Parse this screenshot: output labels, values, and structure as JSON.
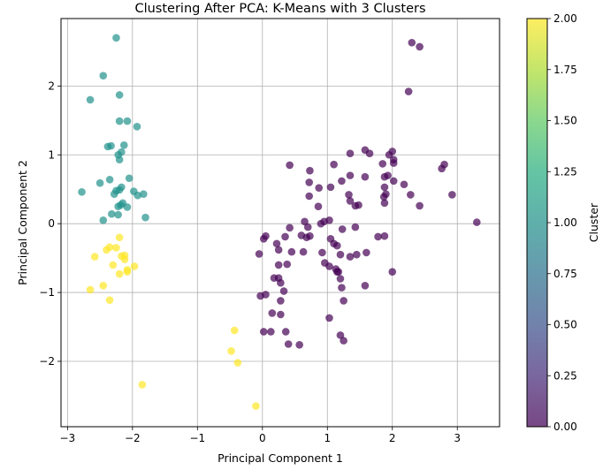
{
  "chart_data": {
    "type": "scatter",
    "title": "Clustering After PCA: K-Means with 3 Clusters",
    "xlabel": "Principal Component 1",
    "ylabel": "Principal Component 2",
    "xlim": [
      -3.1,
      3.65
    ],
    "ylim": [
      -2.95,
      2.98
    ],
    "xticks": [
      -3,
      -2,
      -1,
      0,
      1,
      2,
      3
    ],
    "yticks": [
      -2,
      -1,
      0,
      1,
      2
    ],
    "grid": true,
    "colorbar": {
      "label": "Cluster",
      "range": [
        0,
        2
      ],
      "ticks": [
        "0.00",
        "0.25",
        "0.50",
        "0.75",
        "1.00",
        "1.25",
        "1.50",
        "1.75",
        "2.00"
      ],
      "colormap": "viridis"
    },
    "series": [
      {
        "cluster": 0,
        "color": "#440154",
        "points": [
          [
            2.3,
            2.63
          ],
          [
            2.42,
            2.57
          ],
          [
            2.25,
            1.92
          ],
          [
            1.58,
            1.07
          ],
          [
            1.65,
            1.02
          ],
          [
            1.35,
            1.02
          ],
          [
            2.0,
            1.05
          ],
          [
            1.95,
            1.0
          ],
          [
            2.02,
            0.93
          ],
          [
            2.02,
            0.88
          ],
          [
            1.85,
            0.87
          ],
          [
            1.1,
            0.86
          ],
          [
            0.42,
            0.85
          ],
          [
            2.8,
            0.86
          ],
          [
            2.76,
            0.8
          ],
          [
            0.73,
            0.77
          ],
          [
            1.93,
            0.7
          ],
          [
            1.35,
            0.7
          ],
          [
            1.58,
            0.68
          ],
          [
            1.88,
            0.68
          ],
          [
            2.02,
            0.62
          ],
          [
            0.72,
            0.6
          ],
          [
            1.22,
            0.62
          ],
          [
            2.18,
            0.57
          ],
          [
            1.88,
            0.53
          ],
          [
            0.87,
            0.52
          ],
          [
            1.05,
            0.53
          ],
          [
            1.9,
            0.43
          ],
          [
            2.28,
            0.42
          ],
          [
            1.87,
            0.39
          ],
          [
            2.92,
            0.42
          ],
          [
            0.72,
            0.4
          ],
          [
            1.33,
            0.42
          ],
          [
            1.35,
            0.33
          ],
          [
            1.88,
            0.3
          ],
          [
            1.48,
            0.27
          ],
          [
            1.43,
            0.26
          ],
          [
            2.42,
            0.26
          ],
          [
            0.86,
            0.25
          ],
          [
            3.3,
            0.02
          ],
          [
            0.95,
            0.03
          ],
          [
            1.03,
            0.05
          ],
          [
            0.65,
            0.03
          ],
          [
            0.7,
            -0.05
          ],
          [
            0.9,
            0.0
          ],
          [
            0.42,
            -0.06
          ],
          [
            1.23,
            -0.08
          ],
          [
            1.43,
            -0.05
          ],
          [
            0.05,
            -0.18
          ],
          [
            0.02,
            -0.22
          ],
          [
            0.35,
            -0.19
          ],
          [
            0.6,
            -0.17
          ],
          [
            0.68,
            -0.2
          ],
          [
            0.73,
            -0.18
          ],
          [
            0.22,
            -0.29
          ],
          [
            1.05,
            -0.22
          ],
          [
            1.1,
            -0.29
          ],
          [
            1.15,
            -0.32
          ],
          [
            1.88,
            -0.18
          ],
          [
            1.78,
            -0.19
          ],
          [
            0.25,
            -0.38
          ],
          [
            0.45,
            -0.41
          ],
          [
            0.63,
            -0.41
          ],
          [
            0.92,
            -0.42
          ],
          [
            1.2,
            -0.45
          ],
          [
            1.35,
            -0.48
          ],
          [
            1.45,
            -0.45
          ],
          [
            1.6,
            -0.42
          ],
          [
            -0.05,
            -0.44
          ],
          [
            0.25,
            -0.6
          ],
          [
            0.38,
            -0.59
          ],
          [
            0.96,
            -0.57
          ],
          [
            1.03,
            -0.62
          ],
          [
            1.13,
            -0.66
          ],
          [
            1.15,
            -0.7
          ],
          [
            1.17,
            -0.7
          ],
          [
            1.2,
            -0.8
          ],
          [
            1.58,
            -0.9
          ],
          [
            1.22,
            -0.93
          ],
          [
            2.0,
            -0.7
          ],
          [
            0.18,
            -0.79
          ],
          [
            0.25,
            -0.79
          ],
          [
            0.28,
            -0.86
          ],
          [
            0.33,
            -0.98
          ],
          [
            0.05,
            -1.03
          ],
          [
            -0.03,
            -1.05
          ],
          [
            0.28,
            -1.12
          ],
          [
            1.25,
            -1.12
          ],
          [
            0.15,
            -1.3
          ],
          [
            0.28,
            -1.32
          ],
          [
            1.03,
            -1.37
          ],
          [
            0.02,
            -1.57
          ],
          [
            0.13,
            -1.57
          ],
          [
            0.36,
            -1.57
          ],
          [
            1.2,
            -1.62
          ],
          [
            1.25,
            -1.7
          ],
          [
            0.4,
            -1.75
          ],
          [
            0.57,
            -1.76
          ]
        ]
      },
      {
        "cluster": 1,
        "color": "#21918c",
        "points": [
          [
            -2.25,
            2.7
          ],
          [
            -2.45,
            2.15
          ],
          [
            -2.2,
            1.87
          ],
          [
            -2.65,
            1.8
          ],
          [
            -2.2,
            1.49
          ],
          [
            -2.08,
            1.49
          ],
          [
            -1.93,
            1.41
          ],
          [
            -2.38,
            1.12
          ],
          [
            -2.33,
            1.13
          ],
          [
            -2.13,
            1.14
          ],
          [
            -2.17,
            1.04
          ],
          [
            -2.22,
            1.0
          ],
          [
            -2.2,
            0.93
          ],
          [
            -2.05,
            0.66
          ],
          [
            -2.35,
            0.64
          ],
          [
            -2.5,
            0.59
          ],
          [
            -2.17,
            0.53
          ],
          [
            -2.2,
            0.49
          ],
          [
            -2.25,
            0.48
          ],
          [
            -1.98,
            0.47
          ],
          [
            -2.28,
            0.43
          ],
          [
            -2.78,
            0.46
          ],
          [
            -1.83,
            0.43
          ],
          [
            -1.92,
            0.41
          ],
          [
            -2.15,
            0.3
          ],
          [
            -2.18,
            0.27
          ],
          [
            -2.22,
            0.25
          ],
          [
            -2.08,
            0.24
          ],
          [
            -2.32,
            0.14
          ],
          [
            -2.22,
            0.13
          ],
          [
            -2.45,
            0.05
          ],
          [
            -1.8,
            0.09
          ]
        ]
      },
      {
        "cluster": 2,
        "color": "#fde725",
        "points": [
          [
            -2.2,
            -0.2
          ],
          [
            -2.25,
            -0.35
          ],
          [
            -2.35,
            -0.34
          ],
          [
            -2.4,
            -0.38
          ],
          [
            -2.58,
            -0.48
          ],
          [
            -2.17,
            -0.47
          ],
          [
            -2.12,
            -0.46
          ],
          [
            -2.12,
            -0.52
          ],
          [
            -2.3,
            -0.6
          ],
          [
            -1.97,
            -0.62
          ],
          [
            -2.08,
            -0.67
          ],
          [
            -2.08,
            -0.7
          ],
          [
            -2.2,
            -0.73
          ],
          [
            -2.45,
            -0.9
          ],
          [
            -2.65,
            -0.96
          ],
          [
            -2.35,
            -1.11
          ],
          [
            -0.43,
            -1.55
          ],
          [
            -0.48,
            -1.85
          ],
          [
            -0.38,
            -2.02
          ],
          [
            -1.85,
            -2.34
          ],
          [
            -0.1,
            -2.65
          ]
        ]
      }
    ]
  }
}
